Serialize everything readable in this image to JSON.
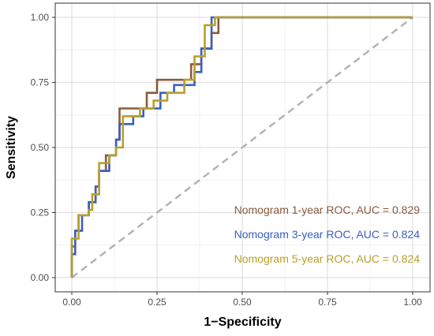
{
  "chart_data": {
    "type": "line",
    "xlabel": "1−Specificity",
    "ylabel": "Sensitivity",
    "xlim": [
      0,
      1
    ],
    "ylim": [
      0,
      1
    ],
    "x_ticks": [
      "0.00",
      "0.25",
      "0.50",
      "0.75",
      "1.00"
    ],
    "y_ticks": [
      "0.00",
      "0.25",
      "0.50",
      "0.75",
      "1.00"
    ],
    "grid": true,
    "reference_line": {
      "x": [
        0,
        1
      ],
      "y": [
        0,
        1
      ],
      "color": "#b3b3b3",
      "style": "dashed"
    },
    "annotations": [
      {
        "text": "Nomogram 1-year ROC, AUC = 0.829",
        "color": "#8b5a3c"
      },
      {
        "text": "Nomogram 3-year ROC, AUC = 0.824",
        "color": "#3a5fbf"
      },
      {
        "text": "Nomogram 5-year ROC, AUC = 0.824",
        "color": "#b8a02a"
      }
    ],
    "series": [
      {
        "color": "#8b5a3c",
        "x": [
          0,
          0,
          0.01,
          0.01,
          0.02,
          0.02,
          0.05,
          0.05,
          0.07,
          0.07,
          0.08,
          0.08,
          0.1,
          0.1,
          0.13,
          0.13,
          0.14,
          0.14,
          0.22,
          0.22,
          0.25,
          0.25,
          0.35,
          0.35,
          0.38,
          0.38,
          0.41,
          0.41,
          0.43,
          0.43,
          1.0
        ],
        "y": [
          0,
          0.12,
          0.12,
          0.18,
          0.18,
          0.24,
          0.24,
          0.29,
          0.29,
          0.35,
          0.35,
          0.41,
          0.41,
          0.47,
          0.47,
          0.53,
          0.53,
          0.65,
          0.65,
          0.71,
          0.71,
          0.76,
          0.76,
          0.82,
          0.82,
          0.88,
          0.88,
          0.94,
          0.94,
          1.0,
          1.0
        ]
      },
      {
        "color": "#3a5fbf",
        "x": [
          0,
          0,
          0.01,
          0.01,
          0.03,
          0.03,
          0.05,
          0.05,
          0.07,
          0.07,
          0.08,
          0.08,
          0.11,
          0.11,
          0.13,
          0.13,
          0.14,
          0.14,
          0.18,
          0.18,
          0.21,
          0.21,
          0.26,
          0.26,
          0.3,
          0.3,
          0.36,
          0.36,
          0.38,
          0.38,
          0.41,
          0.41,
          1.0
        ],
        "y": [
          0,
          0.09,
          0.09,
          0.18,
          0.18,
          0.24,
          0.24,
          0.29,
          0.29,
          0.35,
          0.35,
          0.41,
          0.41,
          0.47,
          0.47,
          0.53,
          0.53,
          0.59,
          0.59,
          0.62,
          0.62,
          0.65,
          0.65,
          0.71,
          0.71,
          0.74,
          0.74,
          0.79,
          0.79,
          0.88,
          0.88,
          1.0,
          1.0
        ]
      },
      {
        "color": "#b8a02a",
        "x": [
          0,
          0,
          0.02,
          0.02,
          0.05,
          0.05,
          0.06,
          0.06,
          0.08,
          0.08,
          0.11,
          0.11,
          0.13,
          0.13,
          0.15,
          0.15,
          0.2,
          0.2,
          0.24,
          0.24,
          0.28,
          0.28,
          0.33,
          0.33,
          0.36,
          0.36,
          0.39,
          0.39,
          0.42,
          0.42,
          1.0
        ],
        "y": [
          0,
          0.15,
          0.15,
          0.24,
          0.24,
          0.26,
          0.26,
          0.32,
          0.32,
          0.44,
          0.44,
          0.47,
          0.47,
          0.5,
          0.5,
          0.62,
          0.62,
          0.65,
          0.65,
          0.68,
          0.68,
          0.71,
          0.71,
          0.76,
          0.76,
          0.85,
          0.85,
          0.97,
          0.97,
          1.0,
          1.0
        ]
      }
    ]
  }
}
